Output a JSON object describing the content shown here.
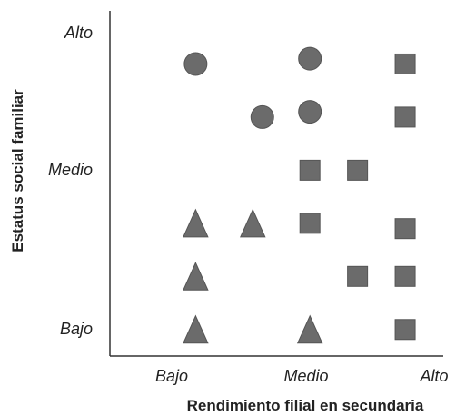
{
  "chart_data": {
    "type": "scatter",
    "xlabel": "Rendimiento filial en secundaria",
    "ylabel": "Estatus social familiar",
    "xticks": [
      "Bajo",
      "Medio",
      "Alto"
    ],
    "yticks": [
      "Bajo",
      "Medio",
      "Alto"
    ],
    "xlim": [
      0,
      3.5
    ],
    "ylim": [
      0,
      6.5
    ],
    "grid": false,
    "legend": "none",
    "color": "#6b6b6b",
    "points": [
      {
        "x": 0.9,
        "y": 5.5,
        "marker": "circle"
      },
      {
        "x": 1.6,
        "y": 4.5,
        "marker": "circle"
      },
      {
        "x": 2.1,
        "y": 5.6,
        "marker": "circle"
      },
      {
        "x": 2.1,
        "y": 4.6,
        "marker": "circle"
      },
      {
        "x": 2.1,
        "y": 3.5,
        "marker": "square"
      },
      {
        "x": 2.6,
        "y": 3.5,
        "marker": "square"
      },
      {
        "x": 3.1,
        "y": 5.5,
        "marker": "square"
      },
      {
        "x": 3.1,
        "y": 4.5,
        "marker": "square"
      },
      {
        "x": 2.1,
        "y": 2.5,
        "marker": "square"
      },
      {
        "x": 3.1,
        "y": 2.4,
        "marker": "square"
      },
      {
        "x": 2.6,
        "y": 1.5,
        "marker": "square"
      },
      {
        "x": 3.1,
        "y": 1.5,
        "marker": "square"
      },
      {
        "x": 3.1,
        "y": 0.5,
        "marker": "square"
      },
      {
        "x": 0.9,
        "y": 2.5,
        "marker": "triangle"
      },
      {
        "x": 1.5,
        "y": 2.5,
        "marker": "triangle"
      },
      {
        "x": 0.9,
        "y": 1.5,
        "marker": "triangle"
      },
      {
        "x": 0.9,
        "y": 0.5,
        "marker": "triangle"
      },
      {
        "x": 2.1,
        "y": 0.5,
        "marker": "triangle"
      }
    ]
  }
}
